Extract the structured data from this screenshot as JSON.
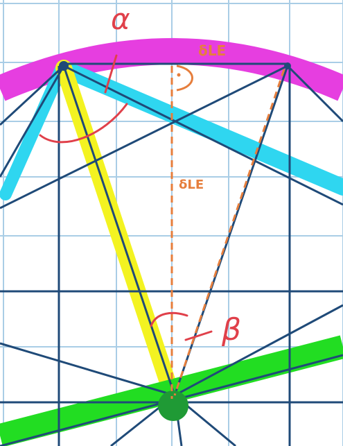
{
  "diagram": {
    "labels": {
      "alpha": "α",
      "beta": "β",
      "top_length": "δLE",
      "vertical_length": "δLE"
    },
    "colors": {
      "grid": "#a9cde6",
      "construction_line": "#1f4a78",
      "magenta_arc": "#e63ee0",
      "cyan_band": "#2fd6f0",
      "yellow_band": "#f3f321",
      "green_band": "#22dd22",
      "green_dot": "#1f9a35",
      "red_annotation": "#e0404a",
      "orange_annotation": "#e67e3c"
    }
  }
}
